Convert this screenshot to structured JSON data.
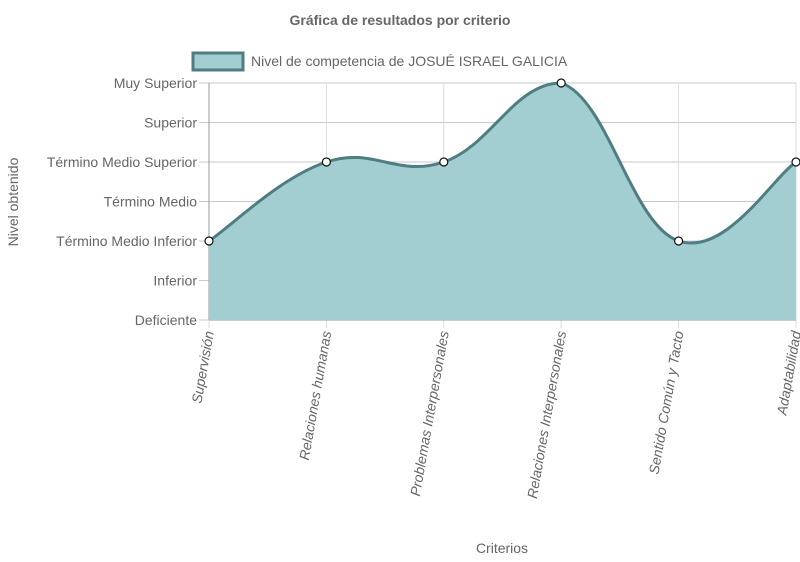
{
  "chart_data": {
    "type": "area",
    "title": "Gráfica de resultados por criterio",
    "xlabel": "Criterios",
    "ylabel": "Nivel obtenido",
    "categories": [
      "Supervisión",
      "Relaciones humanas",
      "Problemas Interpersonales",
      "Relaciones Interpersonales",
      "Sentido Común y Tacto",
      "Adaptabilidad"
    ],
    "levels": [
      "Deficiente",
      "Inferior",
      "Término Medio Inferior",
      "Término Medio",
      "Término Medio Superior",
      "Superior",
      "Muy Superior"
    ],
    "ylim": [
      0,
      6
    ],
    "grid": true,
    "legend_position": "top",
    "series": [
      {
        "name": "Nivel de competencia de JOSUÉ ISRAEL GALICIA",
        "values": [
          2,
          4,
          4,
          6,
          2,
          4
        ],
        "fill_color": "#a2cdd1",
        "line_color": "#4f7d83"
      }
    ]
  }
}
